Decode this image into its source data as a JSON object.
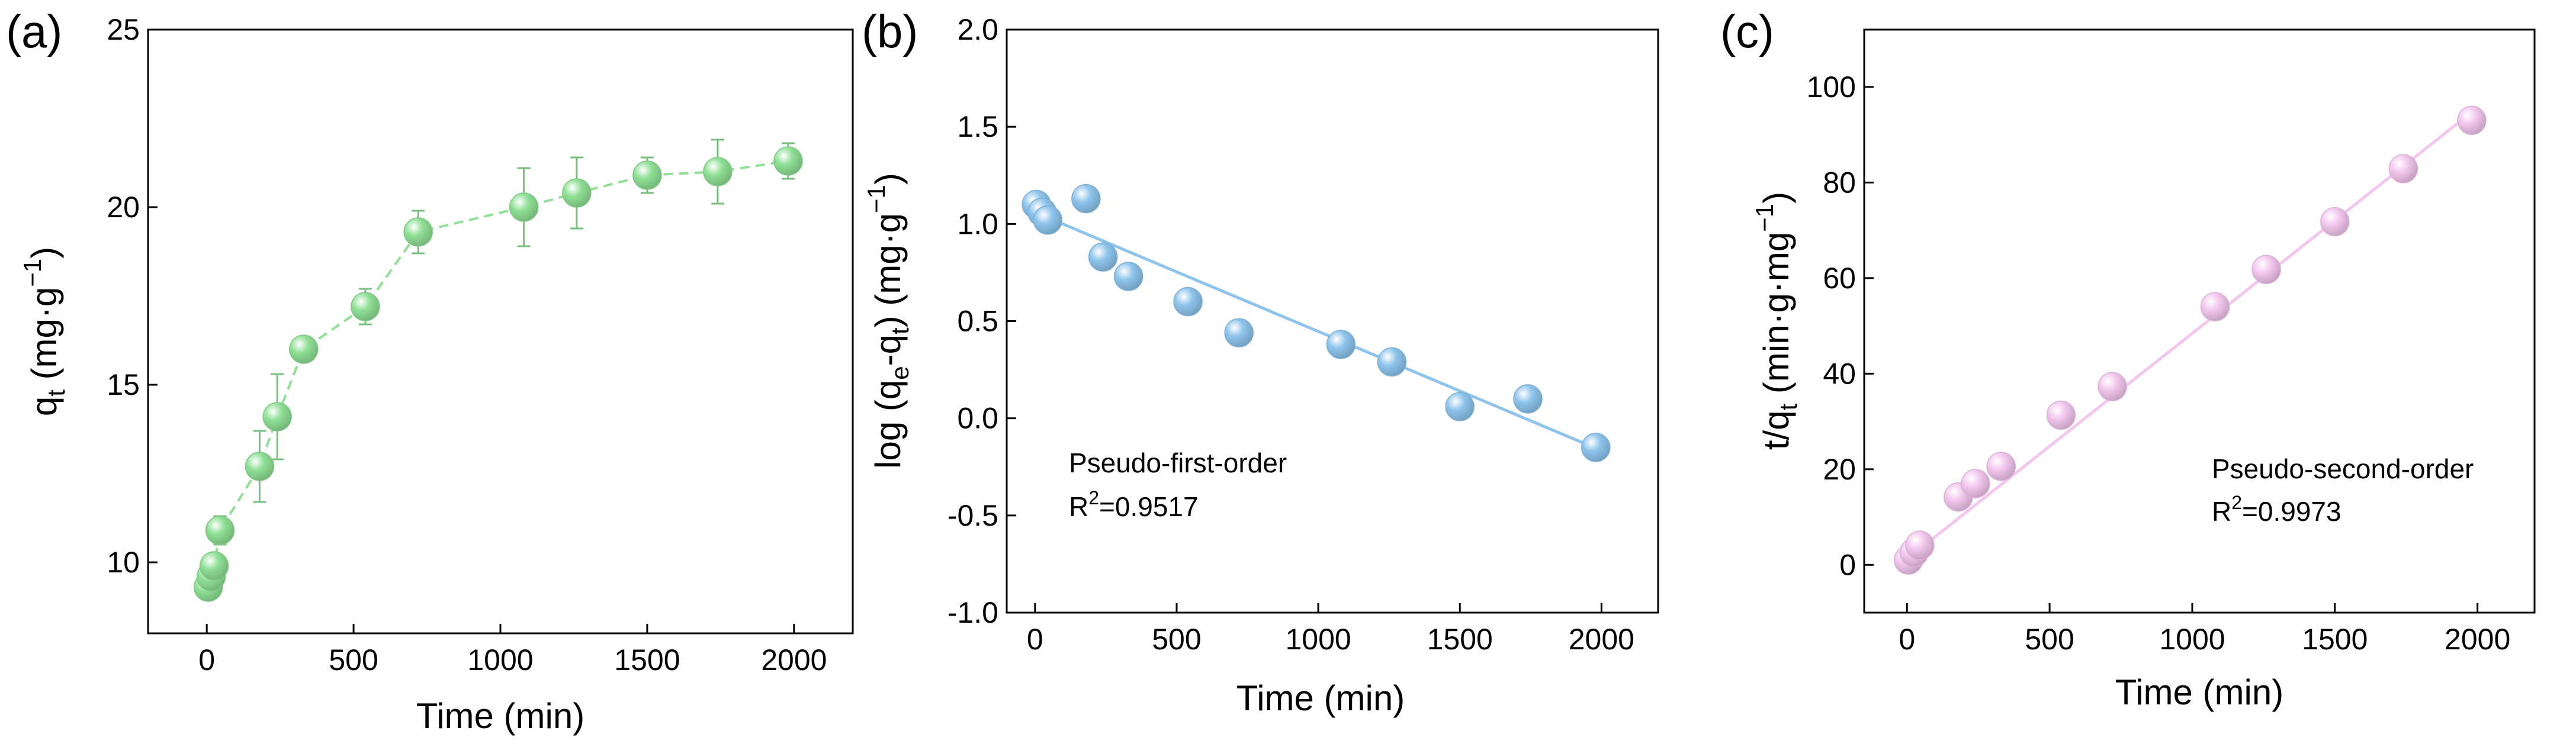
{
  "chart_data": [
    {
      "panel": "(a)",
      "type": "line",
      "marker_color": "#8fdf95",
      "line_style": "dashed",
      "error_bars": true,
      "grid": false,
      "xlim": [
        -200,
        2200
      ],
      "ylim": [
        8,
        25
      ],
      "xticks": [
        0,
        500,
        1000,
        1500,
        2000
      ],
      "yticks": [
        10,
        15,
        20,
        25
      ],
      "xlabel": {
        "base": "Time (min)"
      },
      "ylabel": {
        "base": "q",
        "sub": "t",
        "after": " (mg·g",
        "sup": "−1",
        "end": ")"
      },
      "x": [
        5,
        15,
        25,
        45,
        180,
        240,
        330,
        540,
        720,
        1080,
        1260,
        1500,
        1740,
        1980
      ],
      "y": [
        9.3,
        9.6,
        9.9,
        10.9,
        12.7,
        14.1,
        16.0,
        17.2,
        19.3,
        20.0,
        20.4,
        20.9,
        21.0,
        21.3
      ],
      "err": [
        0.3,
        0.3,
        0.3,
        0.4,
        1.0,
        1.2,
        0.3,
        0.5,
        0.6,
        1.1,
        1.0,
        0.5,
        0.9,
        0.5
      ],
      "annotations": []
    },
    {
      "panel": "(b)",
      "type": "scatter",
      "marker_color": "#8ec4ec",
      "line_style": "solid",
      "fit_line": {
        "x": [
          0,
          1990
        ],
        "y": [
          1.06,
          -0.16
        ]
      },
      "grid": false,
      "xlim": [
        -100,
        2200
      ],
      "ylim": [
        -1.0,
        2.0
      ],
      "xticks": [
        0,
        500,
        1000,
        1500,
        2000
      ],
      "yticks": [
        -1.0,
        -0.5,
        0.0,
        0.5,
        1.0,
        1.5,
        2.0
      ],
      "yticklabels": [
        "-1.0",
        "-0.5",
        "0.0",
        "0.5",
        "1.0",
        "1.5",
        "2.0"
      ],
      "xlabel": {
        "base": "Time (min)"
      },
      "ylabel": {
        "base": "log (q",
        "sub": "e",
        "mid": "-q",
        "sub2": "t",
        "after": ") (mg·g",
        "sup": "−1",
        "end": ")"
      },
      "x": [
        5,
        25,
        45,
        180,
        240,
        330,
        540,
        720,
        1080,
        1260,
        1500,
        1740,
        1980
      ],
      "y": [
        1.1,
        1.06,
        1.02,
        1.13,
        0.83,
        0.73,
        0.6,
        0.44,
        0.38,
        0.29,
        0.06,
        0.1,
        -0.15
      ],
      "annotations": [
        {
          "id": "model",
          "text": "Pseudo-first-order"
        },
        {
          "id": "r2",
          "base": "R",
          "sup": "2",
          "after": "=0.9517"
        }
      ]
    },
    {
      "panel": "(c)",
      "type": "scatter",
      "marker_color": "#f2c6ee",
      "line_style": "solid",
      "fit_line": {
        "x": [
          0,
          1990
        ],
        "y": [
          1.2,
          95.2
        ]
      },
      "grid": false,
      "xlim": [
        -150,
        2200
      ],
      "ylim": [
        -10,
        112
      ],
      "xticks": [
        0,
        500,
        1000,
        1500,
        2000
      ],
      "yticks": [
        0,
        20,
        40,
        60,
        80,
        100
      ],
      "xlabel": {
        "base": "Time (min)"
      },
      "ylabel": {
        "base": "t/q",
        "sub": "t",
        "after": " (min·g·mg",
        "sup": "−1",
        "end": ")"
      },
      "x": [
        5,
        25,
        45,
        180,
        240,
        330,
        540,
        720,
        1080,
        1260,
        1500,
        1740,
        1980
      ],
      "y": [
        1.0,
        2.6,
        4.1,
        14.2,
        17.0,
        20.6,
        31.3,
        37.3,
        54.0,
        61.8,
        71.8,
        82.9,
        93.0
      ],
      "annotations": [
        {
          "id": "model",
          "text": "Pseudo-second-order"
        },
        {
          "id": "r2",
          "base": "R",
          "sup": "2",
          "after": "=0.9973"
        }
      ]
    }
  ]
}
